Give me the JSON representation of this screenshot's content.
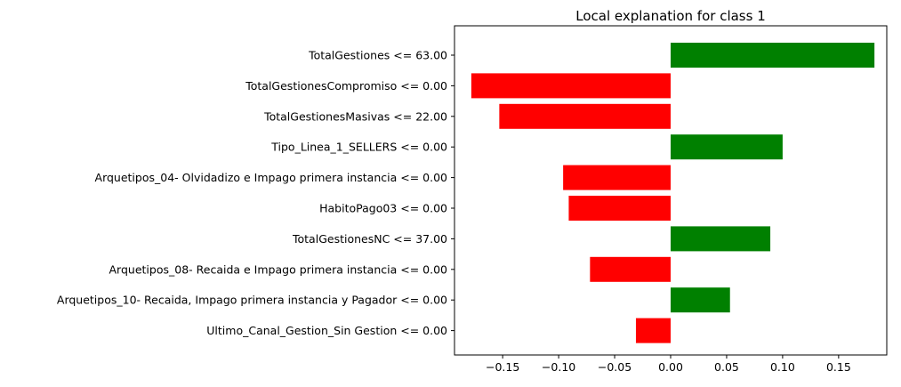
{
  "chart_data": {
    "type": "bar",
    "orientation": "horizontal",
    "title": "Local explanation for class 1",
    "xlabel": "",
    "ylabel": "",
    "xlim": [
      -0.193,
      0.193
    ],
    "xticks": [
      -0.15,
      -0.1,
      -0.05,
      0.0,
      0.05,
      0.1,
      0.15
    ],
    "xtick_labels": [
      "−0.15",
      "−0.10",
      "−0.05",
      "0.00",
      "0.05",
      "0.10",
      "0.15"
    ],
    "grid": false,
    "positive_color": "#008000",
    "negative_color": "#ff0000",
    "categories": [
      "TotalGestiones <= 63.00",
      "TotalGestionesCompromiso <= 0.00",
      "TotalGestionesMasivas <= 22.00",
      "Tipo_Linea_1_SELLERS <= 0.00",
      "Arquetipos_04- Olvidadizo e Impago primera instancia <= 0.00",
      "HabitoPago03 <= 0.00",
      "TotalGestionesNC <= 37.00",
      "Arquetipos_08- Recaida e Impago primera instancia <= 0.00",
      "Arquetipos_10- Recaida, Impago primera instancia y Pagador <= 0.00",
      "Ultimo_Canal_Gestion_Sin Gestion <= 0.00"
    ],
    "values": [
      0.182,
      -0.178,
      -0.153,
      0.1,
      -0.096,
      -0.091,
      0.089,
      -0.072,
      0.053,
      -0.031
    ]
  }
}
